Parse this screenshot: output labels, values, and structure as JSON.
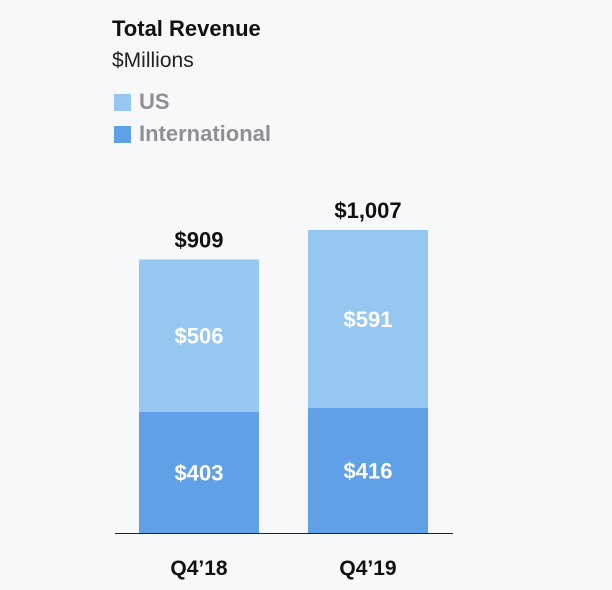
{
  "chart_data": {
    "type": "bar",
    "stacked": true,
    "title": "Total Revenue",
    "subtitle": "$Millions",
    "categories": [
      "Q4’18",
      "Q4’19"
    ],
    "series": [
      {
        "name": "International",
        "values": [
          403,
          416
        ],
        "labels": [
          "$403",
          "$416"
        ],
        "color": "#5fa0e6"
      },
      {
        "name": "US",
        "values": [
          506,
          591
        ],
        "labels": [
          "$506",
          "$591"
        ],
        "color": "#96c7f0"
      }
    ],
    "totals": [
      909,
      1007
    ],
    "total_labels": [
      "$909",
      "$1,007"
    ],
    "ylim": [
      0,
      1007
    ],
    "grid": false,
    "legend_position": "top-left"
  }
}
